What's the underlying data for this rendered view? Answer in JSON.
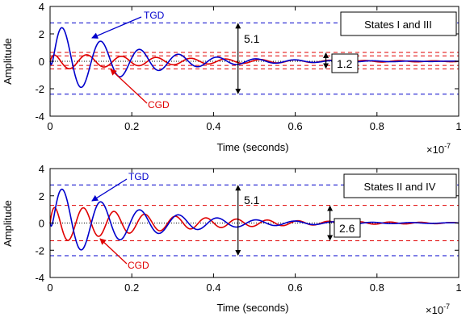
{
  "chart_data": [
    {
      "type": "line",
      "xlabel": "Time (seconds)",
      "ylabel": "Amplitude",
      "x_exponent": "×10",
      "x_exponent_power": "-7",
      "xlim": [
        0,
        1
      ],
      "ylim": [
        -4,
        4
      ],
      "xticks": [
        0,
        0.2,
        0.4,
        0.6,
        0.8,
        1
      ],
      "xtick_labels": [
        "0",
        "0.2",
        "0.4",
        "0.6",
        "0.8",
        "1"
      ],
      "yticks": [
        -4,
        -2,
        0,
        2,
        4
      ],
      "ytick_labels": [
        "-4",
        "-2",
        "0",
        "2",
        "4"
      ],
      "grid": "dotted",
      "legend_box": "States I and III",
      "series": [
        {
          "name": "TGD",
          "color": "#0000cc",
          "amplitude": 2.9,
          "decay": 5.5,
          "period": 0.095,
          "phase": -0.4
        },
        {
          "name": "CGD",
          "color": "#e00000",
          "amplitude": 0.62,
          "decay": 3.0,
          "period": 0.085,
          "phase": 1.2
        }
      ],
      "envelope_lines": {
        "blue": [
          2.8,
          -2.4
        ],
        "red": [
          0.65,
          0.4,
          -0.3,
          -0.55
        ]
      },
      "annotations": [
        {
          "text": "TGD",
          "color": "#0000cc"
        },
        {
          "text": "CGD",
          "color": "#e00000"
        },
        {
          "text": "5.1",
          "type": "span",
          "x": 0.46,
          "from": -2.4,
          "to": 2.8
        },
        {
          "text": "1.2",
          "type": "span",
          "x": 0.675,
          "from": -0.55,
          "to": 0.65
        }
      ]
    },
    {
      "type": "line",
      "xlabel": "Time (seconds)",
      "ylabel": "Amplitude",
      "x_exponent": "×10",
      "x_exponent_power": "-7",
      "xlim": [
        0,
        1
      ],
      "ylim": [
        -4,
        4
      ],
      "xticks": [
        0,
        0.2,
        0.4,
        0.6,
        0.8,
        1
      ],
      "xtick_labels": [
        "0",
        "0.2",
        "0.4",
        "0.6",
        "0.8",
        "1"
      ],
      "yticks": [
        -4,
        -2,
        0,
        2,
        4
      ],
      "ytick_labels": [
        "-4",
        "-2",
        "0",
        "2",
        "4"
      ],
      "grid": "dotted",
      "legend_box": "States II and IV",
      "series": [
        {
          "name": "TGD",
          "color": "#0000cc",
          "amplitude": 2.9,
          "decay": 5.0,
          "period": 0.095,
          "phase": -0.4
        },
        {
          "name": "CGD",
          "color": "#e00000",
          "amplitude": 1.5,
          "decay": 3.6,
          "period": 0.075,
          "phase": 1.0
        }
      ],
      "envelope_lines": {
        "blue": [
          2.8,
          -2.4
        ],
        "red": [
          1.3,
          -1.3
        ]
      },
      "annotations": [
        {
          "text": "TGD",
          "color": "#0000cc"
        },
        {
          "text": "CGD",
          "color": "#e00000"
        },
        {
          "text": "5.1",
          "type": "span",
          "x": 0.46,
          "from": -2.4,
          "to": 2.8
        },
        {
          "text": "2.6",
          "type": "span",
          "x": 0.685,
          "from": -1.3,
          "to": 1.3
        }
      ]
    }
  ]
}
